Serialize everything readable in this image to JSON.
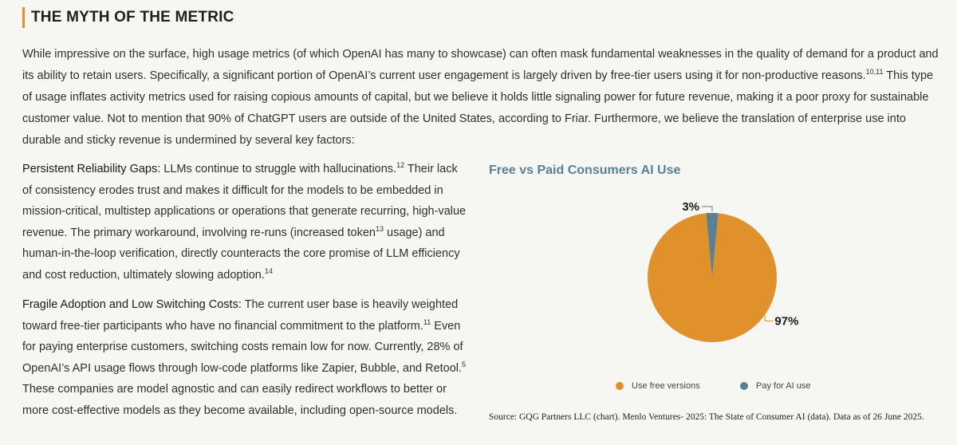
{
  "section": {
    "title": "THE MYTH OF THE METRIC"
  },
  "intro": {
    "text_a": "While impressive on the surface, high usage metrics (of which OpenAI has many to showcase) can often mask fundamental weaknesses in the quality of demand for a product and its ability to retain users. Specifically, a significant portion of OpenAI’s current user engagement is largely driven by free-tier users using it for non-productive reasons.",
    "sup_a": "10,11",
    "text_b": " This type of usage inflates activity metrics used for raising copious amounts of capital, but we believe it holds little signaling power for future revenue, making it a poor proxy for sustainable customer value. Not to mention that 90% of ChatGPT users are outside of the United States, according to Friar. Furthermore, we believe the translation of enterprise use into durable and sticky revenue is undermined by several key factors:"
  },
  "factor1": {
    "lead": "Persistent Reliability Gaps:",
    "text_a": " LLMs continue to struggle with hallucinations.",
    "sup_a": "12",
    "text_b": " Their lack of consistency erodes trust and makes it difficult for the models to be embedded in mission-critical, multistep applications or operations that generate recurring, high-value revenue. The primary workaround, involving re-runs (increased token",
    "sup_b": "13",
    "text_c": " usage) and human-in-the-loop verification, directly counteracts the core promise of LLM efficiency and cost reduction, ultimately slowing adoption.",
    "sup_c": "14"
  },
  "factor2": {
    "lead": "Fragile Adoption and Low Switching Costs:",
    "text_a": " The current user base is heavily weighted toward free-tier participants who have no financial commitment to the platform.",
    "sup_a": "11",
    "text_b": " Even for paying enterprise customers, switching costs remain low for now. Currently, 28% of OpenAI’s API usage flows through low-code platforms like Zapier, Bubble, and Retool.",
    "sup_b": "5",
    "text_c": " These companies are model agnostic and can easily redirect workflows to better or more cost-effective models as they become available, including open-source models."
  },
  "chart_data": {
    "type": "pie",
    "title": "Free vs Paid Consumers AI Use",
    "categories": [
      "Use free versions",
      "Pay for AI use"
    ],
    "values": [
      97,
      3
    ],
    "labels": [
      "97%",
      "3%"
    ],
    "colors": [
      "#e0912c",
      "#5c7f91"
    ],
    "legend": "bottom",
    "source": "Source: GQG Partners LLC (chart). Menlo Ventures- 2025: The State of Consumer AI (data). Data as of 26 June 2025."
  }
}
